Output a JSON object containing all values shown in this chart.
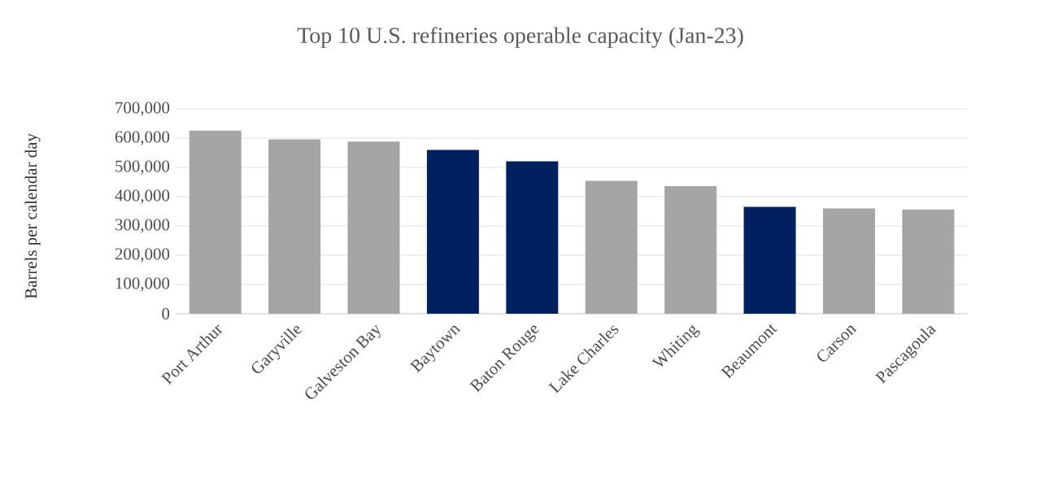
{
  "chart_data": {
    "type": "bar",
    "title": "Top 10 U.S. refineries operable capacity (Jan-23)",
    "ylabel": "Barrels per calendar day",
    "categories": [
      "Port Arthur",
      "Garyville",
      "Galveston Bay",
      "Baytown",
      "Baton Rouge",
      "Lake Charles",
      "Whiting",
      "Beaumont",
      "Carson",
      "Pascagoula"
    ],
    "values": [
      626000,
      596000,
      588000,
      560000,
      521000,
      454000,
      436000,
      365000,
      360000,
      356000
    ],
    "colors": [
      "#a5a5a5",
      "#a5a5a5",
      "#a5a5a5",
      "#002060",
      "#002060",
      "#a5a5a5",
      "#a5a5a5",
      "#002060",
      "#a5a5a5",
      "#a5a5a5"
    ],
    "ylim": [
      0,
      700000
    ],
    "yticks": [
      {
        "value": 0,
        "label": "0"
      },
      {
        "value": 100000,
        "label": "100,000"
      },
      {
        "value": 200000,
        "label": "200,000"
      },
      {
        "value": 300000,
        "label": "300,000"
      },
      {
        "value": 400000,
        "label": "400,000"
      },
      {
        "value": 500000,
        "label": "500,000"
      },
      {
        "value": 600000,
        "label": "600,000"
      },
      {
        "value": 700000,
        "label": "700,000"
      }
    ],
    "grid": "y"
  }
}
